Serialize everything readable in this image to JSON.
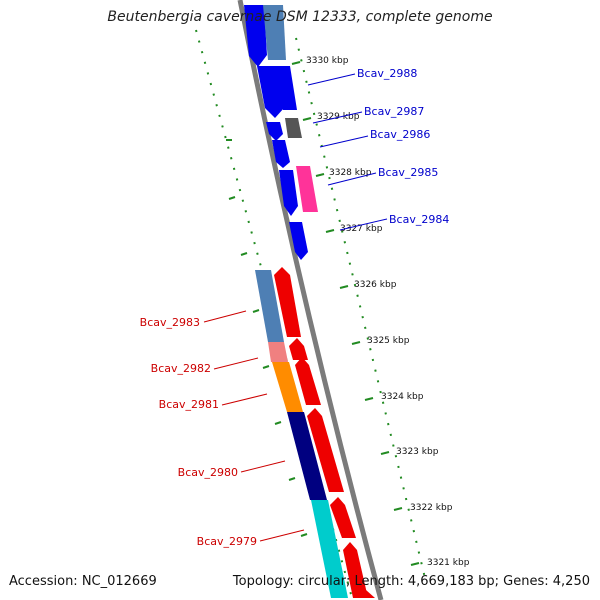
{
  "title": "Beutenbergia cavernae DSM 12333, complete genome",
  "footer": {
    "accession": "Accession: NC_012669",
    "summary": "Topology: circular; Length: 4,669,183 bp; Genes: 4,250"
  },
  "ticks": [
    {
      "label": "3330 kbp"
    },
    {
      "label": "3329 kbp"
    },
    {
      "label": "3328 kbp"
    },
    {
      "label": "3327 kbp"
    },
    {
      "label": "3326 kbp"
    },
    {
      "label": "3325 kbp"
    },
    {
      "label": "3324 kbp"
    },
    {
      "label": "3323 kbp"
    },
    {
      "label": "3322 kbp"
    },
    {
      "label": "3321 kbp"
    }
  ],
  "labels": {
    "forward": [
      "Bcav_2988",
      "Bcav_2987",
      "Bcav_2986",
      "Bcav_2985",
      "Bcav_2984"
    ],
    "reverse": [
      "Bcav_2983",
      "Bcav_2982",
      "Bcav_2981",
      "Bcav_2980",
      "Bcav_2979"
    ]
  },
  "colors": {
    "forward_label": "#0000cc",
    "reverse_label": "#cc0000",
    "tick": "#228b22",
    "backbone": "#808080",
    "cds_forward": "#0000ee",
    "cds_reverse": "#ee0000",
    "steelblue": "#4e7fb4",
    "dimgray": "#555555",
    "pink": "#ff3399",
    "salmon": "#f08080",
    "orange": "#ff8c00",
    "navy": "#000080",
    "cyan": "#00cccc"
  }
}
